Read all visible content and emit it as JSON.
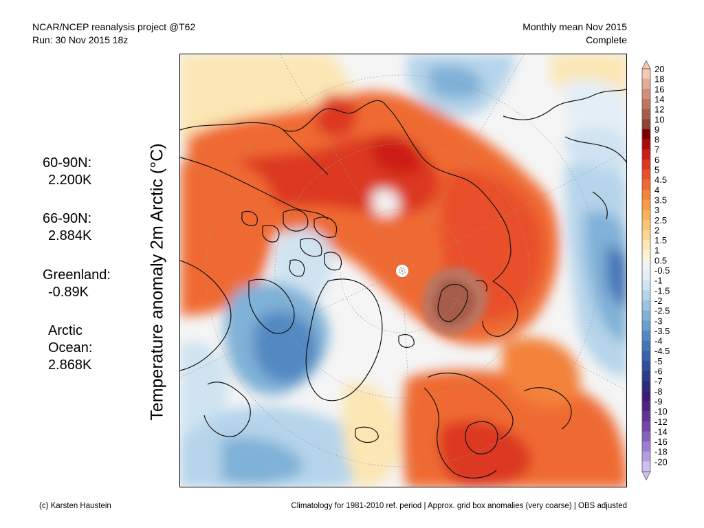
{
  "header": {
    "left_line1": "NCAR/NCEP reanalysis project @T62",
    "left_line2": "Run: 30 Nov 2015 18z",
    "right_line1": "Monthly mean Nov 2015",
    "right_line2": "Complete"
  },
  "vertical_title": "Temperature anomaly 2m Arctic (°C)",
  "stats": [
    {
      "label": "60-90N:",
      "value": "2.200K"
    },
    {
      "label": "66-90N:",
      "value": "2.884K"
    },
    {
      "label": "Greenland:",
      "value": "-0.89K"
    },
    {
      "label_line1": "Arctic",
      "label_line2": "Ocean:",
      "value": "2.868K"
    }
  ],
  "colorbar": {
    "levels": [
      "20",
      "18",
      "16",
      "14",
      "12",
      "10",
      "9",
      "8",
      "7",
      "6",
      "5",
      "4.5",
      "4",
      "3.5",
      "3",
      "2.5",
      "2",
      "1.5",
      "1",
      "0.5",
      "-0.5",
      "-1",
      "-1.5",
      "-2",
      "-2.5",
      "-3",
      "-3.5",
      "-4",
      "-4.5",
      "-5",
      "-6",
      "-7",
      "-8",
      "-9",
      "-10",
      "-12",
      "-14",
      "-16",
      "-18",
      "-20"
    ],
    "colors": [
      "#f3c8b5",
      "#e4ab95",
      "#d18f78",
      "#bd7560",
      "#a65c48",
      "#8e4535",
      "#7a0000",
      "#aa0a0a",
      "#cc1f14",
      "#dc3721",
      "#e85029",
      "#ef6a31",
      "#f3823b",
      "#f69b48",
      "#f8b15a",
      "#f9c474",
      "#fad796",
      "#fbe6b4",
      "#fcf2d3",
      "#f2f2f2",
      "#e4eef6",
      "#cfe3f1",
      "#b5d4ea",
      "#9cc4e1",
      "#80b1d7",
      "#6a9fcd",
      "#5389c2",
      "#4475b6",
      "#3763aa",
      "#2f4f9b",
      "#2a3c8a",
      "#2d2a7a",
      "#3a1e75",
      "#4f2584",
      "#613395",
      "#7247a8",
      "#8561bc",
      "#9c7fd0",
      "#b59ee0",
      "#cfc0ef"
    ]
  },
  "footer": {
    "left": "(c) Karsten Haustein",
    "right": "Climatology for 1981-2010 ref. period | Approx. grid box anomalies (very coarse) | OBS adjusted"
  }
}
